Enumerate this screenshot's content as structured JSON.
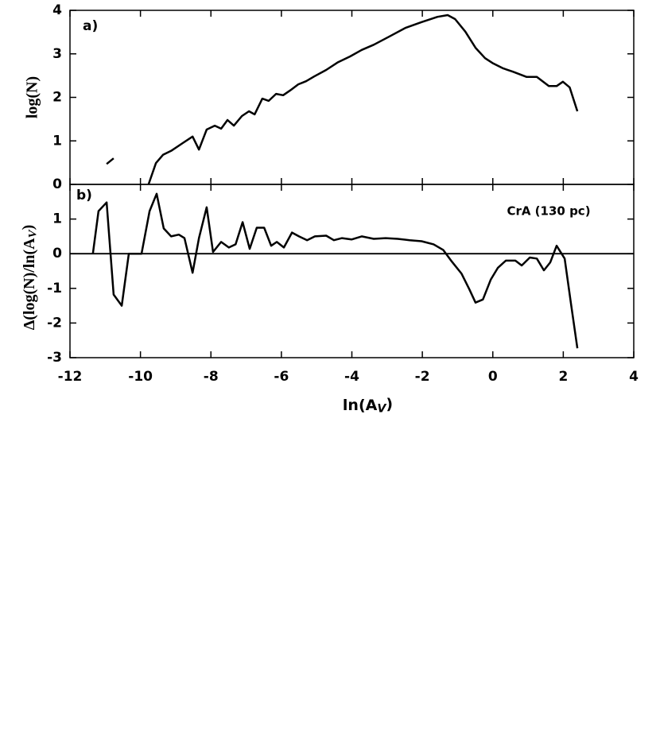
{
  "chart_data": [
    {
      "type": "line",
      "panel_label": "a)",
      "ylabel": "log(N)",
      "x": [
        -10.96,
        -10.76,
        null,
        -9.77,
        -9.56,
        -9.36,
        -9.13,
        -8.8,
        -8.52,
        -8.34,
        -8.12,
        -7.89,
        -7.71,
        -7.53,
        -7.35,
        -7.12,
        -6.92,
        -6.76,
        -6.54,
        -6.36,
        -6.15,
        -5.95,
        -5.75,
        -5.52,
        -5.3,
        -5.07,
        -4.73,
        -4.39,
        -4.05,
        -3.72,
        -3.38,
        -2.93,
        -2.47,
        -2.02,
        -1.57,
        -1.28,
        -1.07,
        -0.78,
        -0.49,
        -0.22,
        0.01,
        0.28,
        0.57,
        0.96,
        1.25,
        1.59,
        1.81,
        1.99,
        2.18,
        2.4
      ],
      "series": [
        {
          "color": "#000000",
          "values": [
            0.47,
            0.6,
            null,
            0,
            0.49,
            0.68,
            0.77,
            0.95,
            1.1,
            0.8,
            1.26,
            1.35,
            1.28,
            1.48,
            1.35,
            1.57,
            1.68,
            1.61,
            1.97,
            1.92,
            2.08,
            2.05,
            2.16,
            2.3,
            2.37,
            2.48,
            2.63,
            2.81,
            2.94,
            3.09,
            3.21,
            3.4,
            3.6,
            3.73,
            3.85,
            3.89,
            3.8,
            3.51,
            3.14,
            2.9,
            2.78,
            2.67,
            2.59,
            2.47,
            2.47,
            2.26,
            2.26,
            2.36,
            2.23,
            1.68
          ]
        }
      ],
      "xlim": [
        -12,
        4
      ],
      "xticks": [
        -12,
        -10,
        -8,
        -6,
        -4,
        -2,
        0,
        2,
        4
      ],
      "xtick_labels": false,
      "ylim": [
        0,
        4
      ],
      "yticks": [
        0,
        1,
        2,
        3,
        4
      ]
    },
    {
      "type": "line",
      "panel_label": "b)",
      "annotation": "CrA (130 pc)",
      "ylabel": {
        "main": "Δ(log(N)/ln(A",
        "sub": "V",
        "end": ")"
      },
      "xlabel": {
        "main": "ln(A",
        "sub": "V",
        "end": ")"
      },
      "x": [
        -11.35,
        -11.19,
        -10.96,
        -10.76,
        -10.53,
        -10.33,
        -9.97,
        -9.74,
        -9.54,
        -9.34,
        -9.13,
        -8.91,
        -8.75,
        -8.52,
        -8.34,
        -8.12,
        -7.94,
        -7.71,
        -7.49,
        -7.3,
        -7.1,
        -6.9,
        -6.7,
        -6.49,
        -6.29,
        -6.13,
        -5.93,
        -5.7,
        -5.5,
        -5.27,
        -5.05,
        -4.73,
        -4.51,
        -4.28,
        -4.01,
        -3.72,
        -3.38,
        -3.04,
        -2.7,
        -2.36,
        -2.02,
        -1.68,
        -1.41,
        -1.16,
        -0.89,
        -0.67,
        -0.49,
        -0.28,
        -0.06,
        0.14,
        0.37,
        0.64,
        0.82,
        1.05,
        1.25,
        1.45,
        1.63,
        1.81,
        2.04,
        2.22,
        2.4
      ],
      "series": [
        {
          "color": "#000000",
          "values": [
            0,
            1.23,
            1.48,
            -1.18,
            -1.5,
            0,
            0,
            1.23,
            1.73,
            0.73,
            0.5,
            0.55,
            0.45,
            -0.55,
            0.45,
            1.34,
            0.05,
            0.34,
            0.18,
            0.27,
            0.91,
            0.14,
            0.75,
            0.75,
            0.23,
            0.34,
            0.18,
            0.61,
            0.5,
            0.39,
            0.5,
            0.52,
            0.39,
            0.45,
            0.41,
            0.5,
            0.43,
            0.45,
            0.43,
            0.39,
            0.36,
            0.27,
            0.11,
            -0.23,
            -0.57,
            -1.02,
            -1.41,
            -1.32,
            -0.75,
            -0.41,
            -0.2,
            -0.2,
            -0.34,
            -0.11,
            -0.14,
            -0.48,
            -0.25,
            0.23,
            -0.14,
            -1.45,
            -2.73
          ]
        }
      ],
      "hline": 0,
      "xlim": [
        -12,
        4
      ],
      "xticks": [
        -12,
        -10,
        -8,
        -6,
        -4,
        -2,
        0,
        2,
        4
      ],
      "xtick_labels": true,
      "ylim": [
        -3,
        2
      ],
      "yticks": [
        -3,
        -2,
        -1,
        0,
        1
      ]
    }
  ]
}
